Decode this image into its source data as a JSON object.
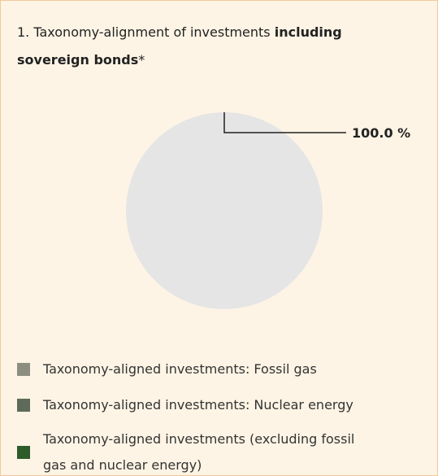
{
  "chart_data": {
    "type": "pie",
    "title": [
      {
        "text": "1. Taxonomy-alignment of investments ",
        "bold": false
      },
      {
        "text": "including sovereign bonds",
        "bold": true
      },
      {
        "text": "*",
        "bold": false
      }
    ],
    "categories": [
      "Taxonomy-aligned investments: Fossil gas",
      "Taxonomy-aligned investments: Nuclear energy",
      "Taxonomy-aligned investments (excluding fossil gas and nuclear energy)",
      null
    ],
    "values": [
      0,
      0,
      0,
      100.0
    ],
    "value_labels": [
      null,
      null,
      null,
      "100.0 %"
    ],
    "colors": [
      "#8c8f80",
      "#5e6b5a",
      "#2e5b2a",
      "#e5e5e5"
    ]
  }
}
